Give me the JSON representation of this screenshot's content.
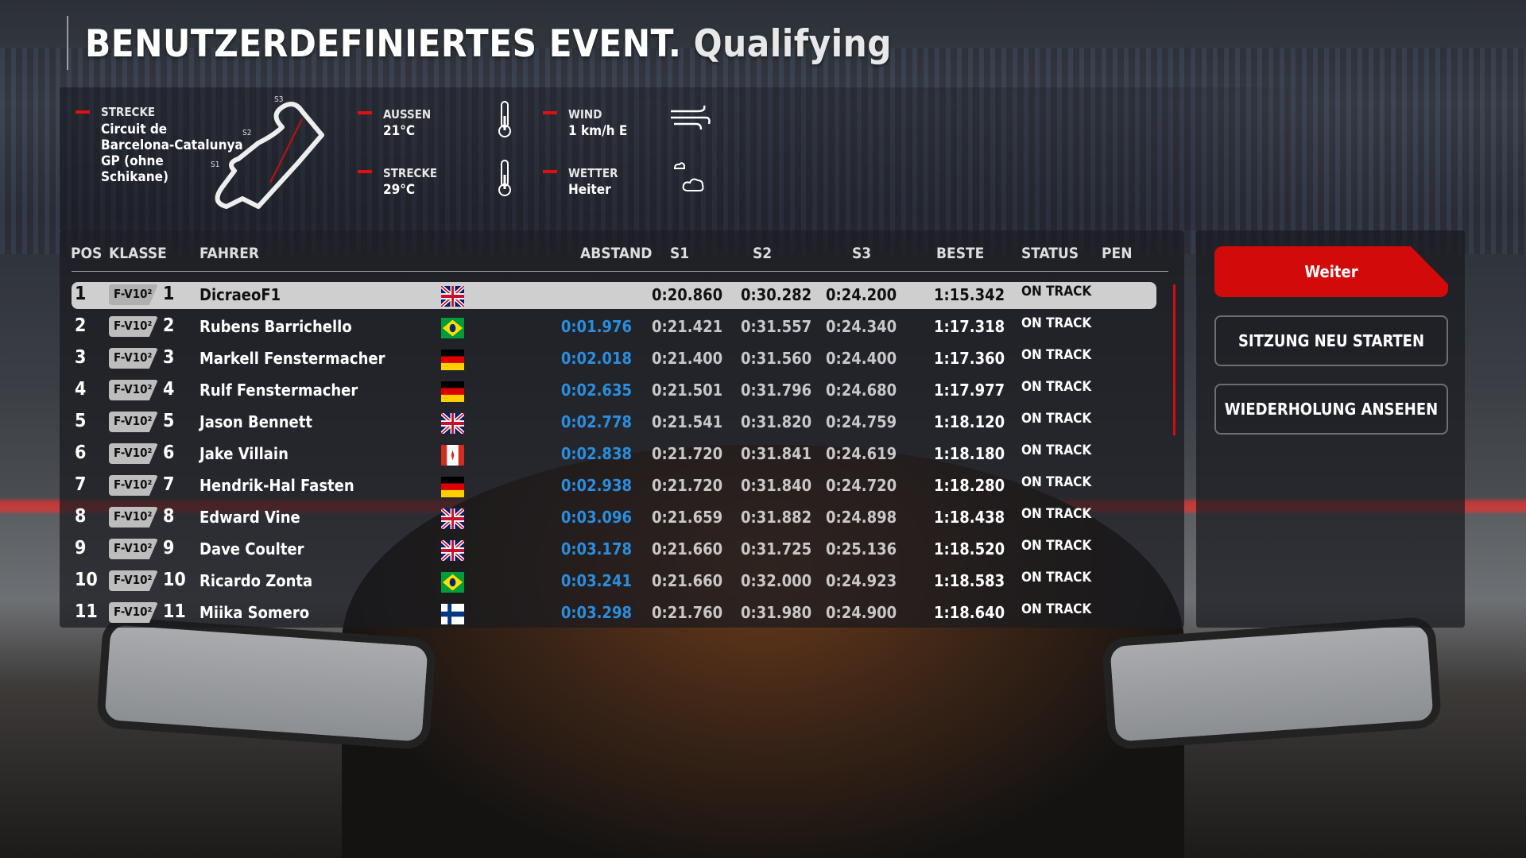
{
  "title": {
    "main": "BENUTZERDEFINIERTES EVENT.",
    "sub": "Qualifying"
  },
  "info": {
    "track_label": "STRECKE",
    "track_name": [
      "Circuit de",
      "Barcelona-Catalunya",
      "GP (ohne",
      "Schikane)"
    ],
    "sectors": [
      "S1",
      "S2",
      "S3"
    ],
    "air_label": "AUSSEN",
    "air_value": "21°C",
    "track_temp_label": "STRECKE",
    "track_temp_value": "29°C",
    "wind_label": "WIND",
    "wind_value": "1 km/h E",
    "weather_label": "WETTER",
    "weather_value": "Heiter",
    "icons": [
      "thermometer-icon",
      "wind-icon",
      "cloud-icon"
    ]
  },
  "table": {
    "headers": {
      "pos": "POS",
      "class": "KLASSE",
      "driver": "FAHRER",
      "gap": "ABSTAND",
      "s1": "S1",
      "s2": "S2",
      "s3": "S3",
      "best": "BESTE",
      "status": "STATUS",
      "pen": "PEN"
    },
    "rows": [
      {
        "pos": "1",
        "class": "F-V10²",
        "num": "1",
        "name": "DicraeoF1",
        "flag": "gb",
        "gap": "",
        "s1": "0:20.860",
        "s2": "0:30.282",
        "s3": "0:24.200",
        "best": "1:15.342",
        "status": "ON TRACK",
        "selected": true
      },
      {
        "pos": "2",
        "class": "F-V10²",
        "num": "2",
        "name": "Rubens Barrichello",
        "flag": "br",
        "gap": "0:01.976",
        "s1": "0:21.421",
        "s2": "0:31.557",
        "s3": "0:24.340",
        "best": "1:17.318",
        "status": "ON TRACK"
      },
      {
        "pos": "3",
        "class": "F-V10²",
        "num": "3",
        "name": "Markell Fenstermacher",
        "flag": "de",
        "gap": "0:02.018",
        "s1": "0:21.400",
        "s2": "0:31.560",
        "s3": "0:24.400",
        "best": "1:17.360",
        "status": "ON TRACK"
      },
      {
        "pos": "4",
        "class": "F-V10²",
        "num": "4",
        "name": "Rulf Fenstermacher",
        "flag": "de",
        "gap": "0:02.635",
        "s1": "0:21.501",
        "s2": "0:31.796",
        "s3": "0:24.680",
        "best": "1:17.977",
        "status": "ON TRACK"
      },
      {
        "pos": "5",
        "class": "F-V10²",
        "num": "5",
        "name": "Jason Bennett",
        "flag": "gb",
        "gap": "0:02.778",
        "s1": "0:21.541",
        "s2": "0:31.820",
        "s3": "0:24.759",
        "best": "1:18.120",
        "status": "ON TRACK"
      },
      {
        "pos": "6",
        "class": "F-V10²",
        "num": "6",
        "name": "Jake Villain",
        "flag": "ca",
        "gap": "0:02.838",
        "s1": "0:21.720",
        "s2": "0:31.841",
        "s3": "0:24.619",
        "best": "1:18.180",
        "status": "ON TRACK"
      },
      {
        "pos": "7",
        "class": "F-V10²",
        "num": "7",
        "name": "Hendrik-Hal Fasten",
        "flag": "de",
        "gap": "0:02.938",
        "s1": "0:21.720",
        "s2": "0:31.840",
        "s3": "0:24.720",
        "best": "1:18.280",
        "status": "ON TRACK"
      },
      {
        "pos": "8",
        "class": "F-V10²",
        "num": "8",
        "name": "Edward Vine",
        "flag": "gb",
        "gap": "0:03.096",
        "s1": "0:21.659",
        "s2": "0:31.882",
        "s3": "0:24.898",
        "best": "1:18.438",
        "status": "ON TRACK"
      },
      {
        "pos": "9",
        "class": "F-V10²",
        "num": "9",
        "name": "Dave Coulter",
        "flag": "gb",
        "gap": "0:03.178",
        "s1": "0:21.660",
        "s2": "0:31.725",
        "s3": "0:25.136",
        "best": "1:18.520",
        "status": "ON TRACK"
      },
      {
        "pos": "10",
        "class": "F-V10²",
        "num": "10",
        "name": "Ricardo Zonta",
        "flag": "br",
        "gap": "0:03.241",
        "s1": "0:21.660",
        "s2": "0:32.000",
        "s3": "0:24.923",
        "best": "1:18.583",
        "status": "ON TRACK"
      },
      {
        "pos": "11",
        "class": "F-V10²",
        "num": "11",
        "name": "Miika Somero",
        "flag": "fi",
        "gap": "0:03.298",
        "s1": "0:21.760",
        "s2": "0:31.980",
        "s3": "0:24.900",
        "best": "1:18.640",
        "status": "ON TRACK"
      }
    ]
  },
  "buttons": {
    "continue": "Weiter",
    "restart": "SITZUNG NEU STARTEN",
    "replay": "WIEDERHOLUNG ANSEHEN"
  },
  "colors": {
    "accent": "#d20a0a",
    "gap": "#2a8ee0"
  }
}
